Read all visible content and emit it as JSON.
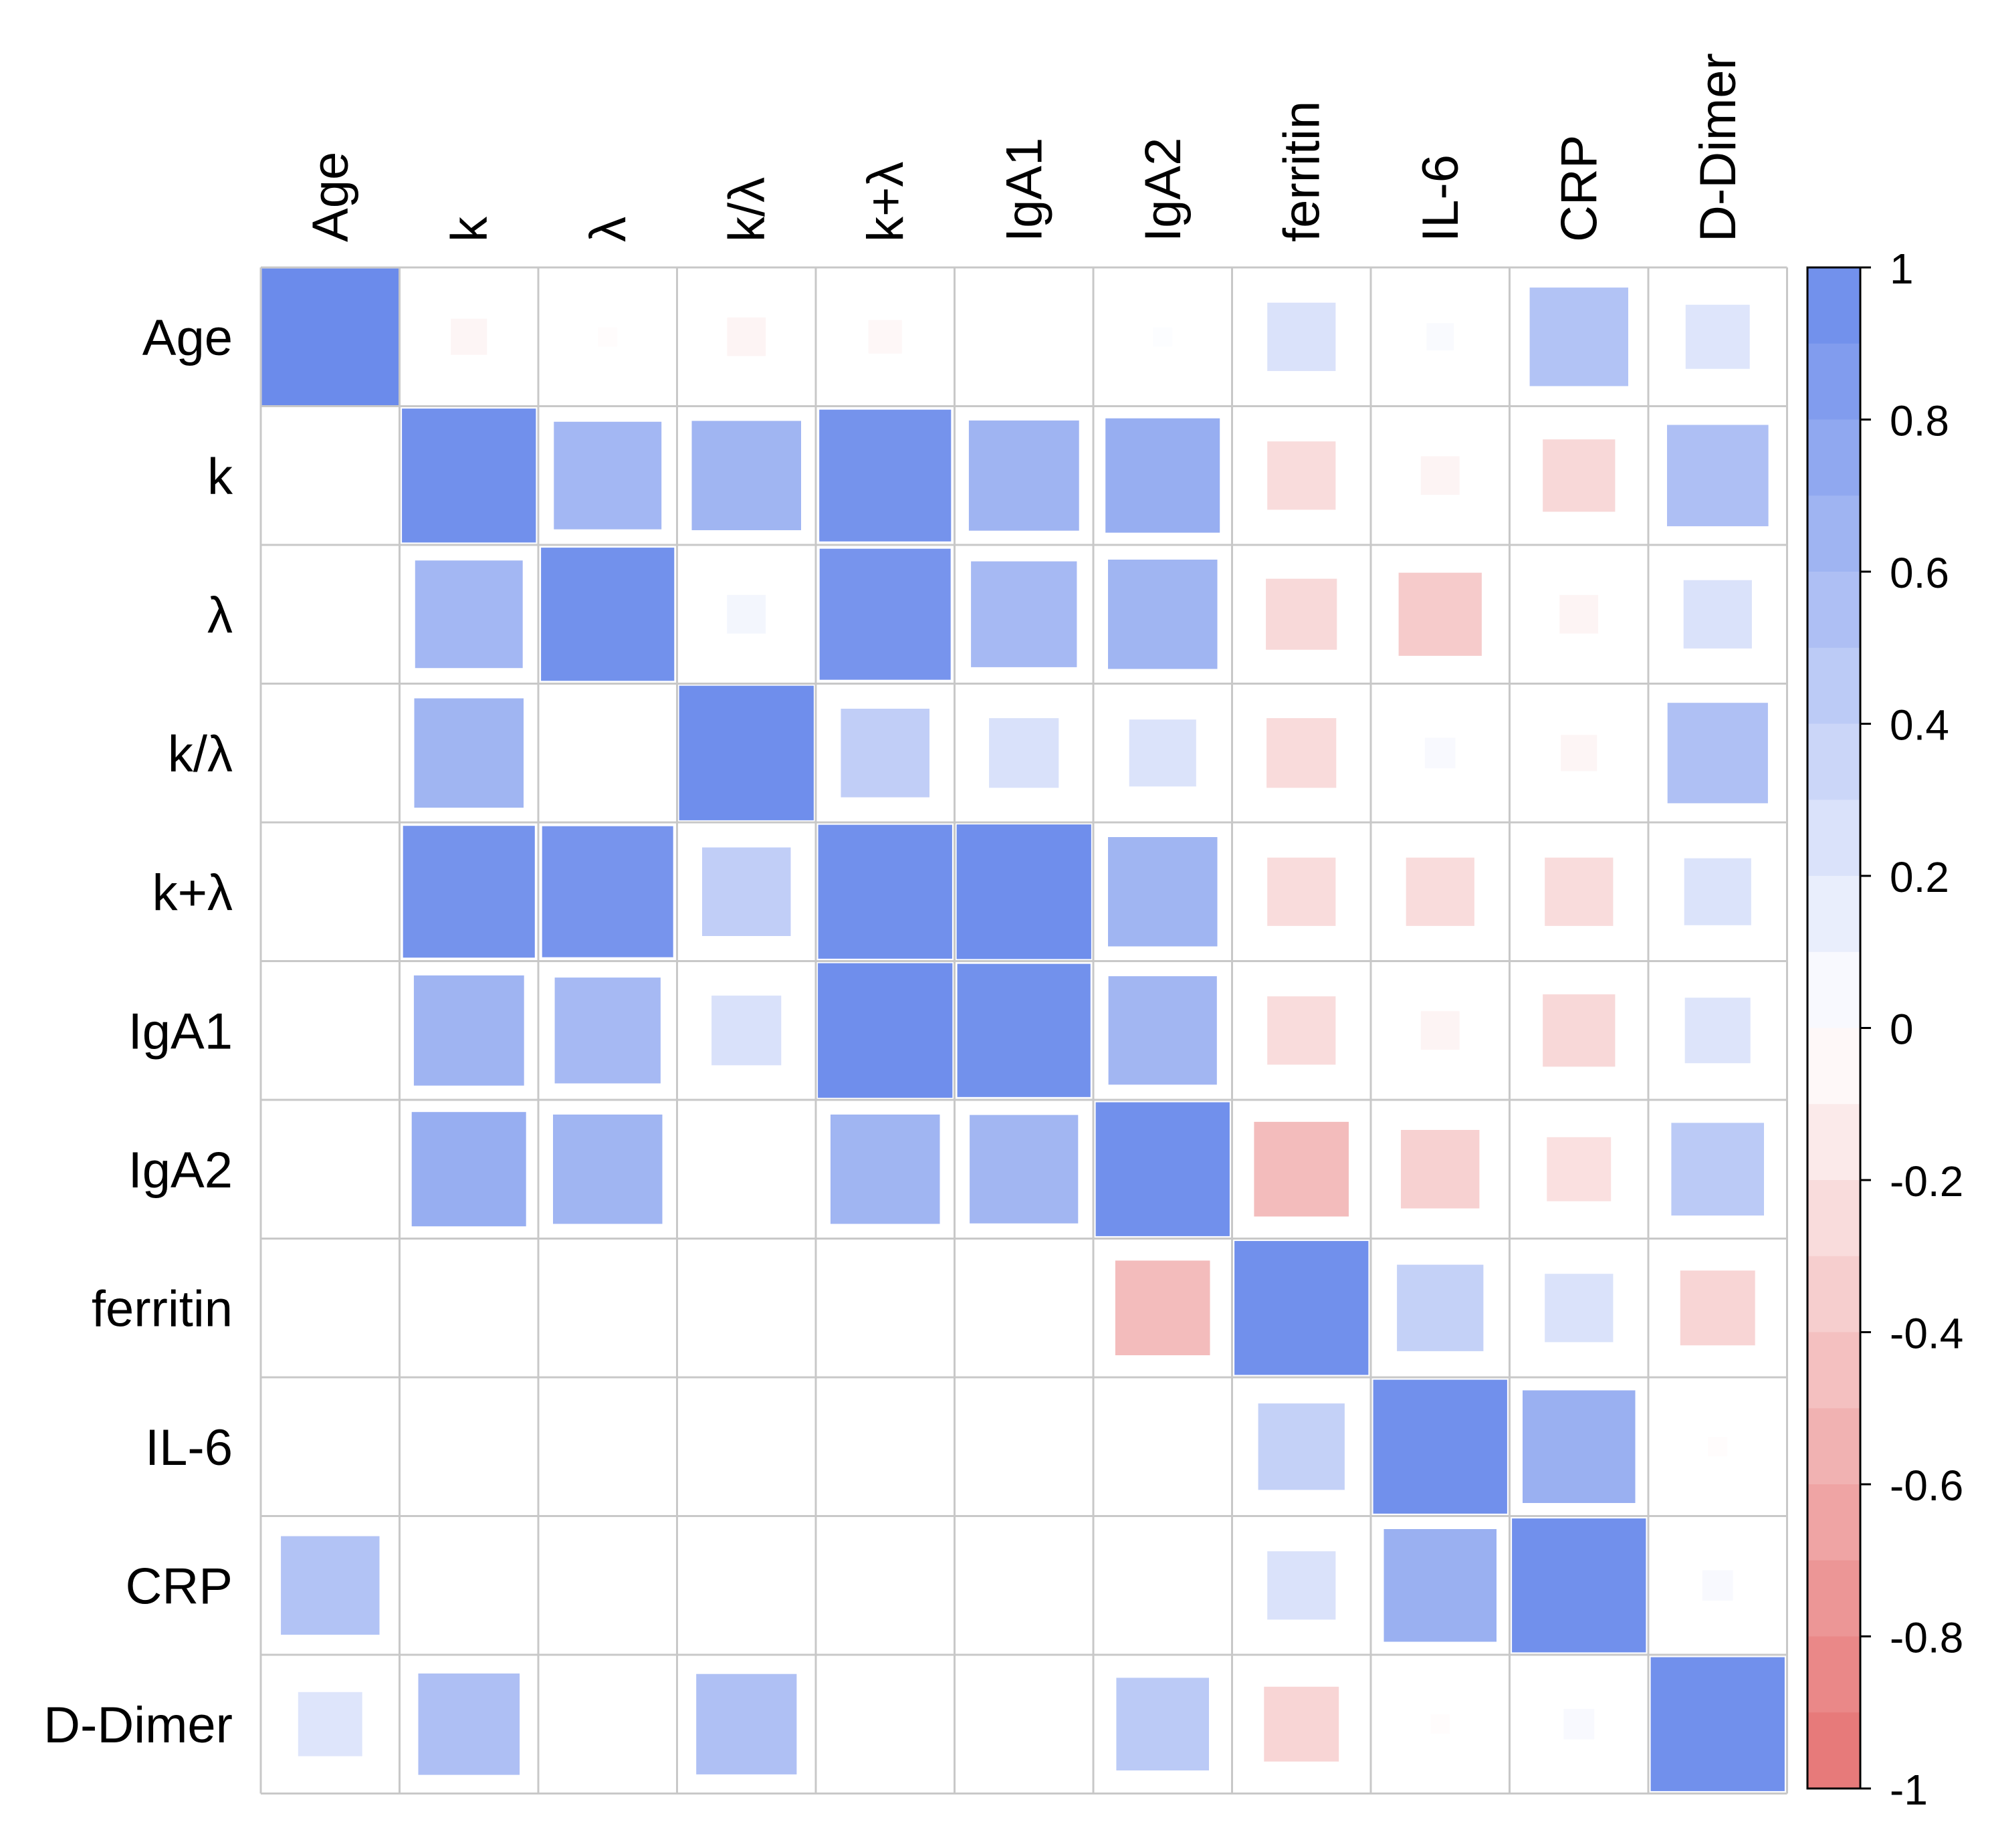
{
  "chart_data": {
    "type": "heatmap",
    "title": "",
    "variables": [
      "Age",
      "k",
      "λ",
      "k/λ",
      "k+λ",
      "IgA1",
      "IgA2",
      "ferritin",
      "IL-6",
      "CRP",
      "D-Dimer"
    ],
    "row_labels": [
      "Age",
      "k",
      "λ",
      "k/λ",
      "k+λ",
      "IgA1",
      "IgA2",
      "ferritin",
      "IL-6",
      "CRP",
      "D-Dimer"
    ],
    "col_labels": [
      "Age",
      "k",
      "λ",
      "k/λ",
      "k+λ",
      "IgA1",
      "IgA2",
      "ferritin",
      "IL-6",
      "CRP",
      "D-Dimer"
    ],
    "matrix": [
      [
        1.0,
        -0.07,
        -0.02,
        -0.08,
        -0.06,
        0.0,
        0.02,
        0.25,
        0.04,
        0.52,
        0.22
      ],
      [
        null,
        0.96,
        0.62,
        0.64,
        0.93,
        0.65,
        0.7,
        -0.25,
        -0.08,
        -0.28,
        0.55
      ],
      [
        null,
        0.62,
        0.95,
        0.08,
        0.92,
        0.6,
        0.64,
        -0.27,
        -0.37,
        -0.08,
        0.25
      ],
      [
        null,
        0.64,
        null,
        0.97,
        0.42,
        0.26,
        0.24,
        -0.26,
        0.05,
        -0.07,
        0.54
      ],
      [
        null,
        0.93,
        0.92,
        0.42,
        0.96,
        0.97,
        0.64,
        -0.25,
        -0.25,
        -0.25,
        0.24
      ],
      [
        null,
        0.65,
        0.6,
        0.26,
        0.97,
        0.95,
        0.63,
        -0.25,
        -0.08,
        -0.28,
        0.23
      ],
      [
        null,
        0.7,
        0.64,
        null,
        0.64,
        0.63,
        0.96,
        -0.48,
        -0.33,
        -0.22,
        0.46
      ],
      [
        null,
        null,
        null,
        null,
        null,
        null,
        -0.48,
        0.96,
        0.4,
        0.25,
        -0.3
      ],
      [
        null,
        null,
        null,
        null,
        null,
        null,
        null,
        0.4,
        0.96,
        0.68,
        -0.02
      ],
      [
        0.52,
        null,
        null,
        null,
        null,
        null,
        null,
        0.25,
        0.68,
        0.96,
        0.05
      ],
      [
        0.22,
        0.55,
        null,
        0.54,
        null,
        null,
        0.46,
        -0.3,
        -0.02,
        0.05,
        0.96
      ]
    ],
    "legend": {
      "ticks": [
        "1",
        "0.8",
        "0.6",
        "0.4",
        "0.2",
        "0",
        "-0.2",
        "-0.4",
        "-0.6",
        "-0.8",
        "-1"
      ],
      "range": [
        -1,
        1
      ],
      "position": "right"
    },
    "colors": {
      "positive": "#6B8BEB",
      "negative": "#E67373",
      "neutral": "#FFFFFF",
      "grid": "#C8C8C8"
    }
  }
}
